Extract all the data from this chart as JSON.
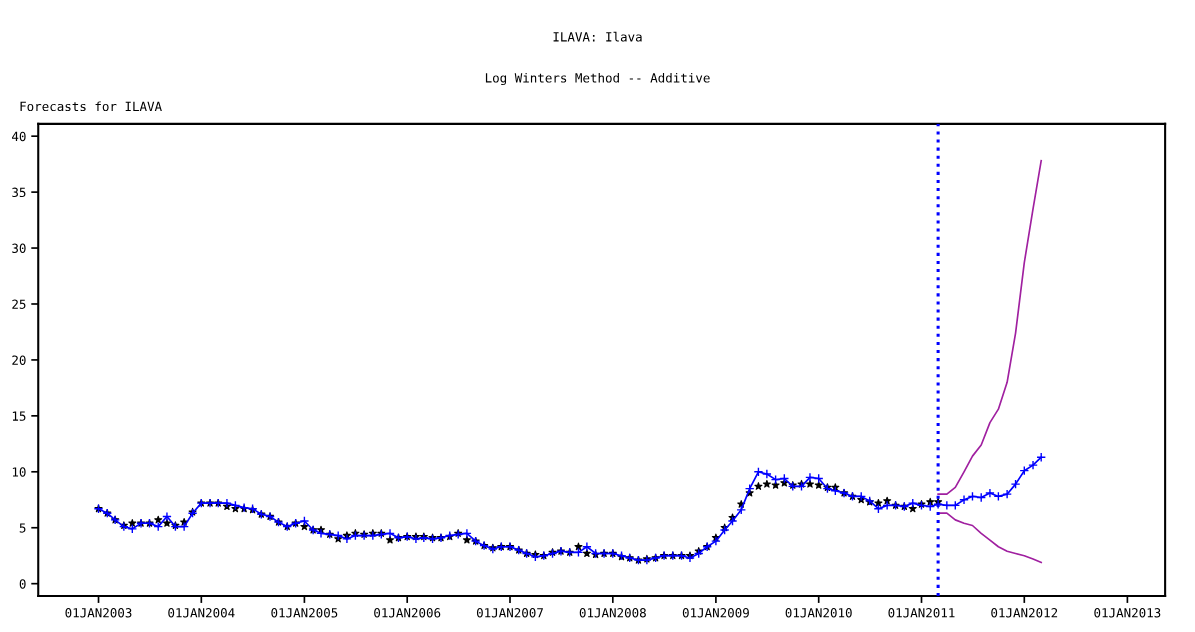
{
  "chart_data": {
    "type": "line",
    "title": "ILAVA: Ilava",
    "subtitle": "Log Winters Method -- Additive",
    "ylabel": "Forecasts for ILAVA",
    "x": [
      "2003-01",
      "2003-02",
      "2003-03",
      "2003-04",
      "2003-05",
      "2003-06",
      "2003-07",
      "2003-08",
      "2003-09",
      "2003-10",
      "2003-11",
      "2003-12",
      "2004-01",
      "2004-02",
      "2004-03",
      "2004-04",
      "2004-05",
      "2004-06",
      "2004-07",
      "2004-08",
      "2004-09",
      "2004-10",
      "2004-11",
      "2004-12",
      "2005-01",
      "2005-02",
      "2005-03",
      "2005-04",
      "2005-05",
      "2005-06",
      "2005-07",
      "2005-08",
      "2005-09",
      "2005-10",
      "2005-11",
      "2005-12",
      "2006-01",
      "2006-02",
      "2006-03",
      "2006-04",
      "2006-05",
      "2006-06",
      "2006-07",
      "2006-08",
      "2006-09",
      "2006-10",
      "2006-11",
      "2006-12",
      "2007-01",
      "2007-02",
      "2007-03",
      "2007-04",
      "2007-05",
      "2007-06",
      "2007-07",
      "2007-08",
      "2007-09",
      "2007-10",
      "2007-11",
      "2007-12",
      "2008-01",
      "2008-02",
      "2008-03",
      "2008-04",
      "2008-05",
      "2008-06",
      "2008-07",
      "2008-08",
      "2008-09",
      "2008-10",
      "2008-11",
      "2008-12",
      "2009-01",
      "2009-02",
      "2009-03",
      "2009-04",
      "2009-05",
      "2009-06",
      "2009-07",
      "2009-08",
      "2009-09",
      "2009-10",
      "2009-11",
      "2009-12",
      "2010-01",
      "2010-02",
      "2010-03",
      "2010-04",
      "2010-05",
      "2010-06",
      "2010-07",
      "2010-08",
      "2010-09",
      "2010-10",
      "2010-11",
      "2010-12",
      "2011-01",
      "2011-02",
      "2011-03",
      "2011-04",
      "2011-05",
      "2011-06",
      "2011-07",
      "2011-08",
      "2011-09",
      "2011-10",
      "2011-11",
      "2011-12",
      "2012-01",
      "2012-02",
      "2012-03"
    ],
    "series": [
      {
        "type": "scatter",
        "marker": "star",
        "color": "#000000",
        "values": [
          6.7,
          6.3,
          5.7,
          5.2,
          5.4,
          5.4,
          5.4,
          5.7,
          5.4,
          5.2,
          5.5,
          6.4,
          7.2,
          7.2,
          7.2,
          6.9,
          6.7,
          6.7,
          6.6,
          6.2,
          6.0,
          5.5,
          5.1,
          5.4,
          5.1,
          4.8,
          4.8,
          4.4,
          4.0,
          4.3,
          4.5,
          4.4,
          4.5,
          4.5,
          3.9,
          4.1,
          4.2,
          4.2,
          4.2,
          4.1,
          4.1,
          4.2,
          4.5,
          3.9,
          3.8,
          3.4,
          3.2,
          3.3,
          3.3,
          3.0,
          2.7,
          2.6,
          2.5,
          2.8,
          2.9,
          2.8,
          3.3,
          2.7,
          2.6,
          2.7,
          2.7,
          2.4,
          2.3,
          2.1,
          2.2,
          2.3,
          2.5,
          2.5,
          2.5,
          2.5,
          2.9,
          3.3,
          4.1,
          5.0,
          5.9,
          7.1,
          8.1,
          8.7,
          8.9,
          8.8,
          9.0,
          8.8,
          8.9,
          8.9,
          8.8,
          8.6,
          8.6,
          8.1,
          7.8,
          7.5,
          7.3,
          7.2,
          7.4,
          7.0,
          6.9,
          6.7,
          7.1,
          7.3,
          7.3,
          null,
          null,
          null,
          null,
          null,
          null,
          null,
          null,
          null,
          null,
          null,
          null
        ]
      },
      {
        "marker": "cross",
        "color": "#0000ff",
        "values": [
          6.7,
          6.3,
          5.7,
          5.1,
          4.9,
          5.4,
          5.4,
          5.1,
          6.0,
          5.1,
          5.1,
          6.3,
          7.2,
          7.2,
          7.2,
          7.2,
          7.0,
          6.8,
          6.7,
          6.2,
          6.0,
          5.5,
          5.1,
          5.4,
          5.6,
          4.8,
          4.5,
          4.4,
          4.3,
          4.0,
          4.3,
          4.3,
          4.3,
          4.4,
          4.5,
          4.1,
          4.2,
          4.0,
          4.1,
          4.0,
          4.1,
          4.3,
          4.4,
          4.5,
          3.8,
          3.4,
          3.1,
          3.3,
          3.3,
          3.0,
          2.7,
          2.4,
          2.5,
          2.7,
          2.9,
          2.8,
          2.8,
          3.3,
          2.7,
          2.7,
          2.7,
          2.5,
          2.3,
          2.1,
          2.1,
          2.3,
          2.5,
          2.5,
          2.5,
          2.3,
          2.7,
          3.3,
          3.8,
          4.8,
          5.6,
          6.6,
          8.5,
          10.0,
          9.8,
          9.3,
          9.4,
          8.7,
          8.7,
          9.5,
          9.4,
          8.5,
          8.3,
          8.1,
          7.8,
          7.8,
          7.4,
          6.7,
          7.0,
          7.0,
          6.9,
          7.2,
          7.0,
          6.9,
          7.1,
          7.0,
          7.0,
          7.5,
          7.8,
          7.7,
          8.1,
          7.8,
          8.0,
          8.9,
          10.1,
          10.6,
          11.3
        ]
      },
      {
        "marker": "none",
        "color": "#a020a0",
        "x": [
          "2011-03",
          "2011-04",
          "2011-05",
          "2011-06",
          "2011-07",
          "2011-08",
          "2011-09",
          "2011-10",
          "2011-11",
          "2011-12",
          "2012-01",
          "2012-02",
          "2012-03"
        ],
        "values": [
          8.0,
          8.0,
          8.6,
          10.0,
          11.4,
          12.4,
          14.4,
          15.6,
          18.0,
          22.4,
          28.7,
          33.5,
          37.8
        ]
      },
      {
        "marker": "none",
        "color": "#a020a0",
        "x": [
          "2011-03",
          "2011-04",
          "2011-05",
          "2011-06",
          "2011-07",
          "2011-08",
          "2011-09",
          "2011-10",
          "2011-11",
          "2011-12",
          "2012-01",
          "2012-02",
          "2012-03"
        ],
        "values": [
          6.3,
          6.3,
          5.7,
          5.4,
          5.2,
          4.5,
          3.9,
          3.3,
          2.9,
          2.7,
          2.5,
          2.2,
          1.9
        ]
      }
    ],
    "xlim": [
      "2002-06-01",
      "2013-05-15"
    ],
    "xticks": [
      {
        "value": "2003-01-01",
        "label": "01JAN2003"
      },
      {
        "value": "2004-01-01",
        "label": "01JAN2004"
      },
      {
        "value": "2005-01-01",
        "label": "01JAN2005"
      },
      {
        "value": "2006-01-01",
        "label": "01JAN2006"
      },
      {
        "value": "2007-01-01",
        "label": "01JAN2007"
      },
      {
        "value": "2008-01-01",
        "label": "01JAN2008"
      },
      {
        "value": "2009-01-01",
        "label": "01JAN2009"
      },
      {
        "value": "2010-01-01",
        "label": "01JAN2010"
      },
      {
        "value": "2011-01-01",
        "label": "01JAN2011"
      },
      {
        "value": "2012-01-01",
        "label": "01JAN2012"
      },
      {
        "value": "2013-01-01",
        "label": "01JAN2013"
      }
    ],
    "ylim": [
      -1.1,
      41.1
    ],
    "yticks": [
      0,
      5,
      10,
      15,
      20,
      25,
      30,
      35,
      40
    ],
    "ref_lines": [
      {
        "axis": "x",
        "value": "2011-03-01",
        "color": "#0000ff",
        "line_style": "dotted"
      }
    ],
    "grid": false,
    "legend": false
  }
}
